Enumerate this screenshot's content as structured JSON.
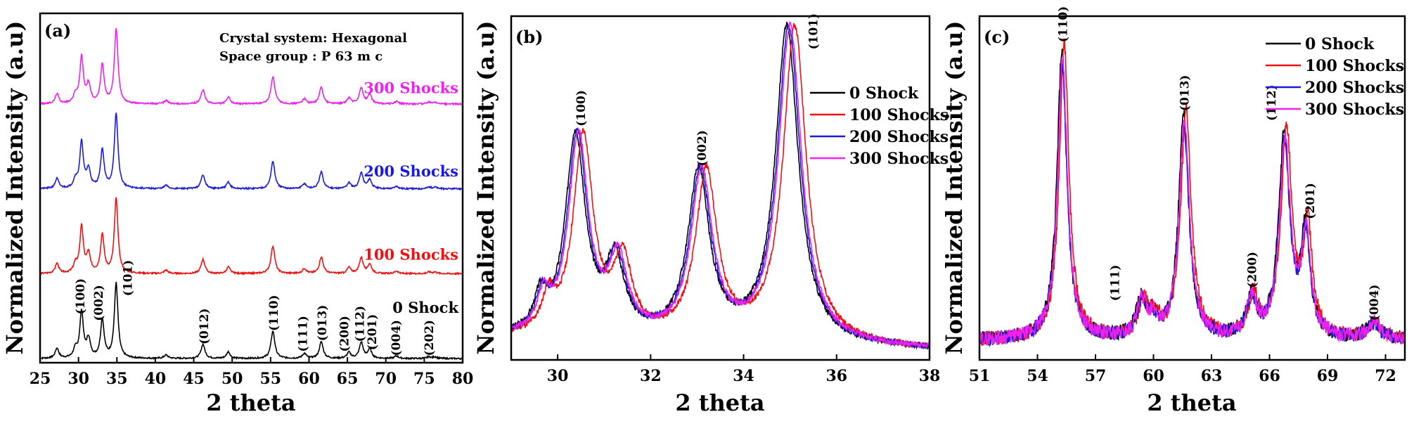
{
  "colors": {
    "s0": "#000000",
    "s100": "#ee1111",
    "s200": "#1a1adc",
    "s300": "#ee22ee"
  },
  "chart_data": [
    {
      "type": "line",
      "panel": "(a)",
      "xlabel": "2 theta",
      "ylabel": "Normalized Intensity (a.u)",
      "xlim": [
        25,
        80
      ],
      "ylim": [
        0,
        4.2
      ],
      "xticks": [
        25,
        30,
        35,
        40,
        45,
        50,
        55,
        60,
        65,
        70,
        75,
        80
      ],
      "notes": [
        "Crystal system: Hexagonal",
        "Space group : P 63 m c"
      ],
      "series": [
        {
          "name": "0 Shock",
          "color_key": "s0",
          "offset": 0.0
        },
        {
          "name": "100 Shocks",
          "color_key": "s100",
          "offset": 1.02
        },
        {
          "name": "200 Shocks",
          "color_key": "s200",
          "offset": 2.04
        },
        {
          "name": "300 Shocks",
          "color_key": "s300",
          "offset": 3.06
        }
      ],
      "peaks": [
        {
          "x": 27.2,
          "h": 0.12,
          "w": 0.28
        },
        {
          "x": 29.6,
          "h": 0.1,
          "w": 0.3
        },
        {
          "x": 30.4,
          "h": 0.55,
          "w": 0.28
        },
        {
          "x": 31.3,
          "h": 0.22,
          "w": 0.3
        },
        {
          "x": 33.1,
          "h": 0.46,
          "w": 0.28
        },
        {
          "x": 34.9,
          "h": 0.9,
          "w": 0.28
        },
        {
          "x": 41.4,
          "h": 0.04,
          "w": 0.3
        },
        {
          "x": 46.2,
          "h": 0.17,
          "w": 0.3
        },
        {
          "x": 49.5,
          "h": 0.08,
          "w": 0.28
        },
        {
          "x": 55.3,
          "h": 0.33,
          "w": 0.3
        },
        {
          "x": 59.4,
          "h": 0.06,
          "w": 0.3
        },
        {
          "x": 61.6,
          "h": 0.2,
          "w": 0.3
        },
        {
          "x": 65.2,
          "h": 0.07,
          "w": 0.3
        },
        {
          "x": 66.8,
          "h": 0.19,
          "w": 0.3
        },
        {
          "x": 67.9,
          "h": 0.11,
          "w": 0.3
        },
        {
          "x": 71.4,
          "h": 0.03,
          "w": 0.3
        },
        {
          "x": 75.6,
          "h": 0.02,
          "w": 0.3
        },
        {
          "x": 76.4,
          "h": 0.02,
          "w": 0.3
        }
      ],
      "series_labels": [
        {
          "text": "0 Shock",
          "color_key": "s0",
          "x": 80,
          "y": 0.6
        },
        {
          "text": "100 Shocks",
          "color_key": "s100",
          "x": 80,
          "y": 1.24
        },
        {
          "text": "200 Shocks",
          "color_key": "s200",
          "x": 80,
          "y": 2.24
        },
        {
          "text": "300 Shocks",
          "color_key": "s300",
          "x": 80,
          "y": 3.24
        }
      ],
      "peak_labels": [
        {
          "text": "(100)",
          "x": 30.2,
          "y": 0.58
        },
        {
          "text": "(002)",
          "x": 32.6,
          "y": 0.5
        },
        {
          "text": "(101)",
          "x": 36.4,
          "y": 0.8
        },
        {
          "text": "(012)",
          "x": 46.3,
          "y": 0.22
        },
        {
          "text": "(110)",
          "x": 55.4,
          "y": 0.38
        },
        {
          "text": "(111)",
          "x": 59.2,
          "y": 0.13
        },
        {
          "text": "(013)",
          "x": 61.7,
          "y": 0.26
        },
        {
          "text": "(200)",
          "x": 64.6,
          "y": 0.13
        },
        {
          "text": "(112)",
          "x": 66.6,
          "y": 0.25
        },
        {
          "text": "(201)",
          "x": 68.2,
          "y": 0.15
        },
        {
          "text": "(004)",
          "x": 71.3,
          "y": 0.08
        },
        {
          "text": "(202)",
          "x": 75.6,
          "y": 0.08
        }
      ]
    },
    {
      "type": "line",
      "panel": "(b)",
      "xlabel": "2 theta",
      "ylabel": "Normalized Intensity (a.u)",
      "xlim": [
        29,
        38
      ],
      "ylim": [
        0,
        1.03
      ],
      "xticks": [
        30,
        32,
        34,
        36,
        38
      ],
      "series": [
        {
          "name": "0 Shock",
          "color_key": "s0",
          "shift": -0.07,
          "scale": 1.0,
          "noise_seed": 3
        },
        {
          "name": "100 Shocks",
          "color_key": "s100",
          "shift": 0.1,
          "scale": 1.0,
          "noise_seed": 11
        },
        {
          "name": "200 Shocks",
          "color_key": "s200",
          "shift": -0.03,
          "scale": 1.0,
          "noise_seed": 17
        },
        {
          "name": "300 Shocks",
          "color_key": "s300",
          "shift": 0.0,
          "scale": 1.0,
          "noise_seed": 23
        }
      ],
      "baseline": 0.03,
      "peaks": [
        {
          "x": 29.7,
          "h": 0.1,
          "w": 0.16
        },
        {
          "x": 30.45,
          "h": 0.6,
          "w": 0.26
        },
        {
          "x": 31.3,
          "h": 0.22,
          "w": 0.24
        },
        {
          "x": 33.1,
          "h": 0.5,
          "w": 0.28
        },
        {
          "x": 35.0,
          "h": 0.95,
          "w": 0.3
        }
      ],
      "peak_labels": [
        {
          "text": "(100)",
          "x": 30.5,
          "y": 0.7
        },
        {
          "text": "(002)",
          "x": 33.1,
          "y": 0.58
        },
        {
          "text": "(101)",
          "x": 35.5,
          "y": 0.93
        }
      ]
    },
    {
      "type": "line",
      "panel": "(c)",
      "xlabel": "2 theta",
      "ylabel": "Normalized Intensity (a.u)",
      "xlim": [
        51,
        73
      ],
      "ylim": [
        0,
        1.05
      ],
      "xticks": [
        51,
        54,
        57,
        60,
        63,
        66,
        69,
        72
      ],
      "series": [
        {
          "name": "0 Shock",
          "color_key": "s0",
          "shift": -0.04,
          "scale": 1.0,
          "noise_seed": 5
        },
        {
          "name": "100 Shocks",
          "color_key": "s100",
          "shift": 0.08,
          "scale": 1.03,
          "noise_seed": 13
        },
        {
          "name": "200 Shocks",
          "color_key": "s200",
          "shift": -0.02,
          "scale": 0.95,
          "noise_seed": 19
        },
        {
          "name": "300 Shocks",
          "color_key": "s300",
          "shift": 0.0,
          "scale": 0.97,
          "noise_seed": 29
        }
      ],
      "baseline": 0.06,
      "peaks": [
        {
          "x": 55.3,
          "h": 0.88,
          "w": 0.3
        },
        {
          "x": 59.4,
          "h": 0.11,
          "w": 0.3
        },
        {
          "x": 60.0,
          "h": 0.05,
          "w": 0.3
        },
        {
          "x": 61.6,
          "h": 0.68,
          "w": 0.32
        },
        {
          "x": 65.1,
          "h": 0.12,
          "w": 0.3
        },
        {
          "x": 66.8,
          "h": 0.62,
          "w": 0.34
        },
        {
          "x": 67.9,
          "h": 0.32,
          "w": 0.28
        },
        {
          "x": 71.4,
          "h": 0.05,
          "w": 0.4
        }
      ],
      "peak_labels": [
        {
          "text": "(110)",
          "x": 55.3,
          "y": 0.97
        },
        {
          "text": "(111)",
          "x": 58.0,
          "y": 0.18
        },
        {
          "text": "(013)",
          "x": 61.6,
          "y": 0.76
        },
        {
          "text": "(200)",
          "x": 65.1,
          "y": 0.22
        },
        {
          "text": "(112)",
          "x": 66.1,
          "y": 0.73
        },
        {
          "text": "(201)",
          "x": 68.1,
          "y": 0.43
        },
        {
          "text": "(004)",
          "x": 71.4,
          "y": 0.12
        }
      ]
    }
  ]
}
